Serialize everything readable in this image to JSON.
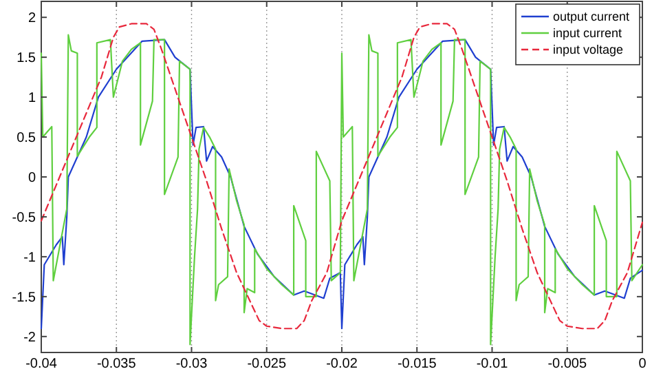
{
  "chart_data": {
    "type": "line",
    "xlim": [
      -0.04,
      0
    ],
    "ylim": [
      -2.2,
      2.2
    ],
    "xticks": [
      -0.04,
      -0.035,
      -0.03,
      -0.025,
      -0.02,
      -0.015,
      -0.01,
      -0.005,
      0
    ],
    "yticks": [
      -2,
      -1.5,
      -1,
      -0.5,
      0,
      0.5,
      1,
      1.5,
      2
    ],
    "grid": "x",
    "legend": "top right",
    "series": [
      {
        "name": "output current",
        "color": "#1f3fd0",
        "line_style": "solid",
        "x": [
          -0.04,
          -0.0398,
          -0.039,
          -0.0386,
          -0.0385,
          -0.0383,
          -0.0382,
          -0.037,
          -0.0362,
          -0.035,
          -0.0333,
          -0.0318,
          -0.0311,
          -0.0301,
          -0.0299,
          -0.0297,
          -0.0292,
          -0.029,
          -0.0286,
          -0.028,
          -0.0274,
          -0.0265,
          -0.0256,
          -0.0245,
          -0.0232,
          -0.0225,
          -0.0212,
          -0.0208,
          -0.0201,
          -0.02,
          -0.0198,
          -0.019,
          -0.0186,
          -0.0185,
          -0.0183,
          -0.0182,
          -0.017,
          -0.0162,
          -0.015,
          -0.0133,
          -0.0118,
          -0.0111,
          -0.0101,
          -0.0099,
          -0.0097,
          -0.0092,
          -0.009,
          -0.0086,
          -0.008,
          -0.0074,
          -0.0065,
          -0.0056,
          -0.0045,
          -0.0032,
          -0.0025,
          -0.0012,
          -0.0008,
          0
        ],
        "values": [
          -1.9,
          -1.1,
          -0.85,
          -0.75,
          -1.1,
          -0.5,
          0,
          0.5,
          1.0,
          1.35,
          1.7,
          1.72,
          1.5,
          1.35,
          0.4,
          0.62,
          0.63,
          0.2,
          0.38,
          0.25,
          0,
          -0.62,
          -0.97,
          -1.25,
          -1.48,
          -1.43,
          -1.52,
          -1.27,
          -1.2,
          -1.9,
          -1.1,
          -0.85,
          -0.75,
          -1.1,
          -0.5,
          0,
          0.5,
          1.0,
          1.35,
          1.7,
          1.72,
          1.5,
          1.35,
          0.4,
          0.62,
          0.63,
          0.2,
          0.38,
          0.25,
          0,
          -0.62,
          -0.97,
          -1.25,
          -1.48,
          -1.43,
          -1.52,
          -1.27,
          -1.17
        ]
      },
      {
        "name": "input current",
        "color": "#5fcf3f",
        "line_style": "solid",
        "x": [
          -0.04,
          -0.0399,
          -0.0393,
          -0.0392,
          -0.0388,
          -0.0383,
          -0.0382,
          -0.038,
          -0.0376,
          -0.0376,
          -0.0368,
          -0.0363,
          -0.0363,
          -0.0354,
          -0.0352,
          -0.0346,
          -0.034,
          -0.0334,
          -0.0334,
          -0.0326,
          -0.0325,
          -0.0318,
          -0.0318,
          -0.0309,
          -0.0308,
          -0.0301,
          -0.0301,
          -0.0298,
          -0.0296,
          -0.0295,
          -0.0292,
          -0.0288,
          -0.0284,
          -0.0284,
          -0.0282,
          -0.0276,
          -0.0275,
          -0.027,
          -0.0265,
          -0.0265,
          -0.0263,
          -0.0258,
          -0.0258,
          -0.025,
          -0.024,
          -0.0232,
          -0.0232,
          -0.0224,
          -0.0224,
          -0.0217,
          -0.0217,
          -0.0208,
          -0.0207,
          -0.0201,
          -0.02,
          -0.0199,
          -0.0193,
          -0.0192,
          -0.0188,
          -0.0183,
          -0.0182,
          -0.018,
          -0.0176,
          -0.0176,
          -0.0168,
          -0.0163,
          -0.0163,
          -0.0154,
          -0.0152,
          -0.0146,
          -0.014,
          -0.0134,
          -0.0134,
          -0.0126,
          -0.0125,
          -0.0118,
          -0.0118,
          -0.0109,
          -0.0108,
          -0.0101,
          -0.0101,
          -0.0098,
          -0.0096,
          -0.0095,
          -0.0092,
          -0.0088,
          -0.0084,
          -0.0084,
          -0.0082,
          -0.0076,
          -0.0075,
          -0.007,
          -0.0065,
          -0.0065,
          -0.0063,
          -0.0058,
          -0.0058,
          -0.005,
          -0.004,
          -0.0032,
          -0.0032,
          -0.0024,
          -0.0024,
          -0.0017,
          -0.0017,
          -0.0008,
          -0.0007,
          0
        ],
        "values": [
          1.55,
          0.5,
          0.63,
          -1.3,
          -0.9,
          -0.4,
          1.78,
          1.58,
          1.55,
          0.26,
          0.5,
          0.62,
          1.68,
          1.72,
          1.0,
          1.45,
          1.6,
          1.68,
          0.4,
          0.95,
          1.72,
          1.72,
          -0.22,
          0.25,
          1.45,
          1.35,
          -2.1,
          -1.0,
          -0.4,
          0.35,
          0.62,
          0.5,
          0.35,
          -1.55,
          -1.35,
          -1.25,
          0.1,
          -0.3,
          -0.6,
          -1.7,
          -1.4,
          -1.45,
          -0.9,
          -1.15,
          -1.35,
          -1.48,
          -0.36,
          -0.8,
          -1.5,
          -1.5,
          0.32,
          -0.05,
          -1.3,
          -1.2,
          1.55,
          0.5,
          0.63,
          -1.3,
          -0.9,
          -0.4,
          1.78,
          1.58,
          1.55,
          0.26,
          0.5,
          0.62,
          1.68,
          1.72,
          1.0,
          1.45,
          1.6,
          1.68,
          0.4,
          0.95,
          1.72,
          1.72,
          -0.22,
          0.25,
          1.45,
          1.35,
          -2.1,
          -1.0,
          -0.4,
          0.35,
          0.62,
          0.5,
          0.35,
          -1.55,
          -1.35,
          -1.25,
          0.1,
          -0.3,
          -0.6,
          -1.7,
          -1.4,
          -1.45,
          -0.9,
          -1.15,
          -1.35,
          -1.48,
          -0.36,
          -0.8,
          -1.5,
          -1.5,
          0.32,
          -0.05,
          -1.3,
          -1.1
        ]
      },
      {
        "name": "input voltage",
        "color": "#e8283c",
        "line_style": "dashed",
        "x": [
          -0.04,
          -0.039,
          -0.038,
          -0.037,
          -0.036,
          -0.0352,
          -0.0348,
          -0.034,
          -0.033,
          -0.0325,
          -0.032,
          -0.031,
          -0.03,
          -0.029,
          -0.028,
          -0.027,
          -0.026,
          -0.0255,
          -0.025,
          -0.024,
          -0.023,
          -0.0225,
          -0.022,
          -0.021,
          -0.02,
          -0.019,
          -0.018,
          -0.017,
          -0.016,
          -0.0152,
          -0.0148,
          -0.014,
          -0.013,
          -0.0125,
          -0.012,
          -0.011,
          -0.01,
          -0.009,
          -0.008,
          -0.007,
          -0.006,
          -0.0055,
          -0.005,
          -0.004,
          -0.003,
          -0.0025,
          -0.002,
          -0.001,
          0
        ],
        "values": [
          -0.55,
          -0.1,
          0.35,
          0.8,
          1.25,
          1.75,
          1.88,
          1.92,
          1.92,
          1.85,
          1.6,
          1.05,
          0.5,
          -0.05,
          -0.65,
          -1.2,
          -1.6,
          -1.8,
          -1.87,
          -1.9,
          -1.9,
          -1.8,
          -1.55,
          -1.2,
          -0.55,
          -0.1,
          0.35,
          0.8,
          1.25,
          1.75,
          1.88,
          1.92,
          1.92,
          1.85,
          1.6,
          1.05,
          0.5,
          -0.05,
          -0.65,
          -1.2,
          -1.6,
          -1.8,
          -1.87,
          -1.9,
          -1.9,
          -1.8,
          -1.55,
          -1.2,
          -0.57
        ]
      }
    ]
  }
}
